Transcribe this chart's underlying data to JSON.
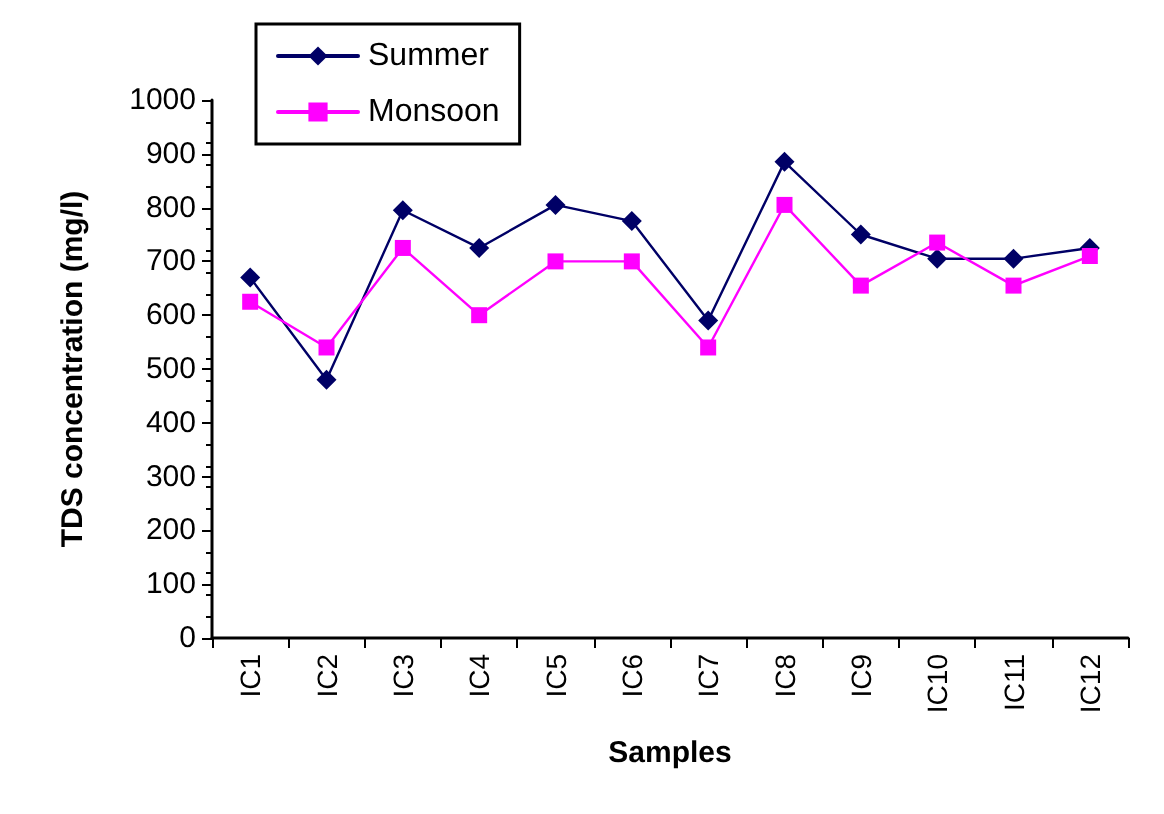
{
  "chart_data": {
    "type": "line",
    "xlabel": "Samples",
    "ylabel": "TDS concentration (mg/l)",
    "categories": [
      "IC1",
      "IC2",
      "IC3",
      "IC4",
      "IC5",
      "IC6",
      "IC7",
      "IC8",
      "IC9",
      "IC10",
      "IC11",
      "IC12"
    ],
    "series": [
      {
        "name": "Summer",
        "color": "#000066",
        "marker": "diamond",
        "values": [
          670,
          480,
          795,
          725,
          805,
          775,
          590,
          885,
          750,
          705,
          705,
          725
        ]
      },
      {
        "name": "Monsoon",
        "color": "#ff00ff",
        "marker": "square",
        "values": [
          625,
          540,
          725,
          600,
          700,
          700,
          540,
          805,
          655,
          735,
          655,
          710
        ]
      }
    ],
    "ylim": [
      0,
      1000
    ],
    "yticks": [
      0,
      100,
      200,
      300,
      400,
      500,
      600,
      700,
      800,
      900,
      1000
    ],
    "grid": false,
    "legend": "top left",
    "line_style": "solid"
  }
}
